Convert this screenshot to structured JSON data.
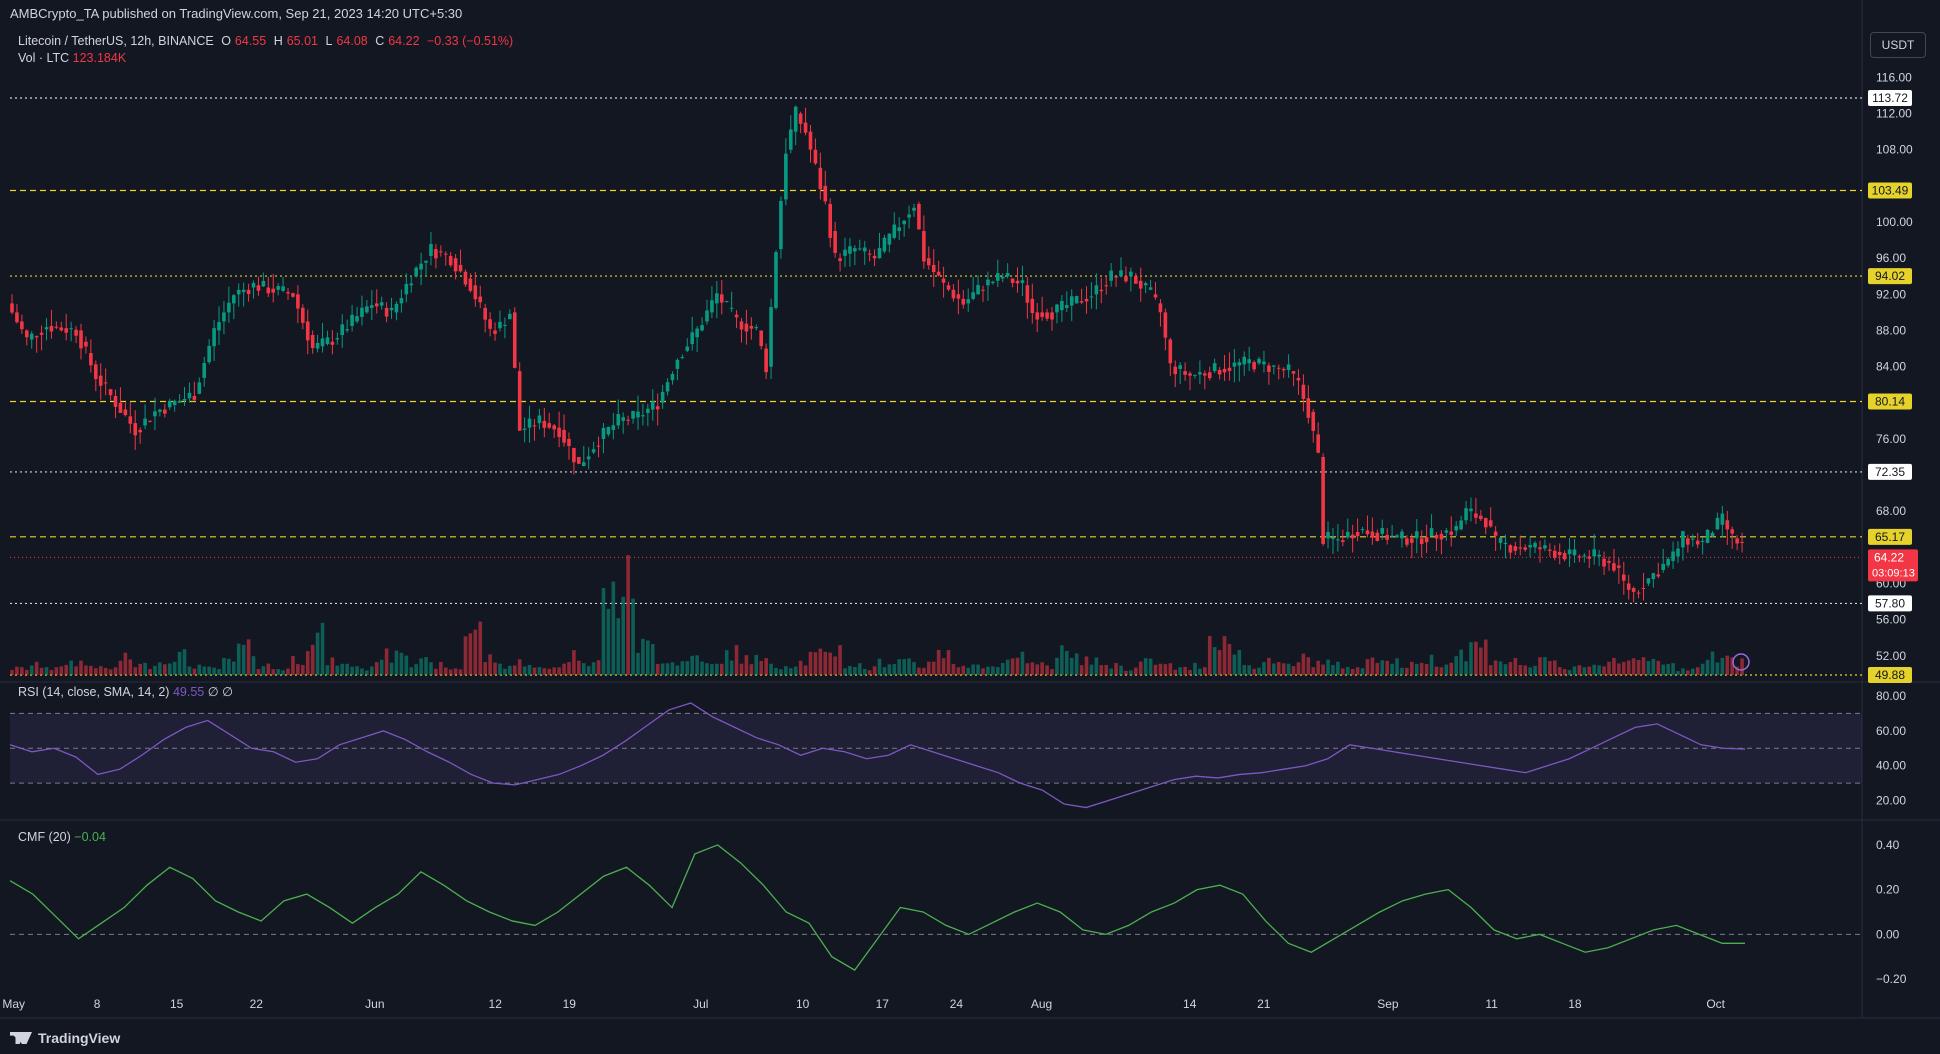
{
  "header": {
    "published": "AMBCrypto_TA published on TradingView.com, Sep 21, 2023 14:20 UTC+5:30",
    "symbol": "Litecoin / TetherUS, 12h, BINANCE",
    "o_label": "O",
    "o": "64.55",
    "h_label": "H",
    "h": "65.01",
    "l_label": "L",
    "l": "64.08",
    "c_label": "C",
    "c": "64.22",
    "change": "−0.33 (−0.51%)",
    "vol_label": "Vol · LTC",
    "vol": "123.184K",
    "currency": "USDT"
  },
  "rsi": {
    "label": "RSI (14, close, SMA, 14, 2)",
    "value": "49.55",
    "extra": "∅ ∅"
  },
  "cmf": {
    "label": "CMF (20)",
    "value": "−0.04"
  },
  "footer": {
    "brand": "TradingView"
  },
  "colors": {
    "up": "#089981",
    "down": "#f23645",
    "level": "#e5d22a",
    "rsi": "#7e57c2",
    "cmf": "#4caf50",
    "bg": "#131722"
  },
  "chart_data": [
    {
      "type": "candlestick",
      "title": "Litecoin / TetherUS, 12h, BINANCE",
      "y_ticks": [
        "116.00",
        "112.00",
        "108.00",
        "100.00",
        "96.00",
        "92.00",
        "88.00",
        "84.00",
        "76.00",
        "68.00",
        "60.00",
        "56.00",
        "52.00"
      ],
      "ylim": [
        49.88,
        116.6
      ],
      "x_ticks": [
        "May",
        "8",
        "15",
        "22",
        "Jun",
        "12",
        "19",
        "Jul",
        "10",
        "17",
        "24",
        "Aug",
        "14",
        "21",
        "Sep",
        "11",
        "18",
        "Oct"
      ],
      "levels": [
        {
          "value": 113.72,
          "label": "113.72",
          "style": "white-dotted"
        },
        {
          "value": 103.49,
          "label": "103.49",
          "style": "yellow-dashed"
        },
        {
          "value": 94.02,
          "label": "94.02",
          "style": "yellow-dotted"
        },
        {
          "value": 80.14,
          "label": "80.14",
          "style": "yellow-dashed"
        },
        {
          "value": 72.35,
          "label": "72.35",
          "style": "white-dotted"
        },
        {
          "value": 65.17,
          "label": "65.17",
          "style": "yellow-dashed"
        },
        {
          "value": 57.8,
          "label": "57.80",
          "style": "white-dotted"
        },
        {
          "value": 49.88,
          "label": "49.88",
          "style": "yellow-dotted"
        }
      ],
      "last_price": {
        "value": 64.22,
        "label": "64.22",
        "countdown": "03:09:13"
      },
      "path_points": [
        [
          0,
          91
        ],
        [
          4,
          87
        ],
        [
          8,
          88.5
        ],
        [
          14,
          88
        ],
        [
          18,
          83
        ],
        [
          22,
          80
        ],
        [
          26,
          77
        ],
        [
          30,
          79
        ],
        [
          34,
          80
        ],
        [
          38,
          81
        ],
        [
          42,
          88
        ],
        [
          46,
          92
        ],
        [
          50,
          93
        ],
        [
          54,
          92.5
        ],
        [
          58,
          92
        ],
        [
          62,
          86
        ],
        [
          66,
          87
        ],
        [
          70,
          89
        ],
        [
          74,
          91
        ],
        [
          78,
          90
        ],
        [
          82,
          94
        ],
        [
          86,
          97
        ],
        [
          90,
          96
        ],
        [
          94,
          93
        ],
        [
          98,
          88
        ],
        [
          100,
          88.5
        ],
        [
          102,
          90
        ],
        [
          104,
          77
        ],
        [
          108,
          78
        ],
        [
          112,
          77
        ],
        [
          116,
          73
        ],
        [
          120,
          76
        ],
        [
          124,
          78
        ],
        [
          128,
          78.5
        ],
        [
          132,
          80
        ],
        [
          136,
          85
        ],
        [
          140,
          88
        ],
        [
          144,
          92
        ],
        [
          148,
          89
        ],
        [
          152,
          88
        ],
        [
          154,
          84
        ],
        [
          156,
          97
        ],
        [
          158,
          108
        ],
        [
          160,
          112
        ],
        [
          162,
          110
        ],
        [
          164,
          106
        ],
        [
          166,
          102
        ],
        [
          168,
          96
        ],
        [
          172,
          97
        ],
        [
          176,
          96
        ],
        [
          180,
          99
        ],
        [
          184,
          102
        ],
        [
          186,
          96
        ],
        [
          190,
          93
        ],
        [
          194,
          91
        ],
        [
          198,
          93
        ],
        [
          202,
          94
        ],
        [
          206,
          93
        ],
        [
          208,
          90
        ],
        [
          212,
          90
        ],
        [
          216,
          91
        ],
        [
          220,
          92
        ],
        [
          224,
          94
        ],
        [
          228,
          94
        ],
        [
          232,
          92
        ],
        [
          234,
          90
        ],
        [
          236,
          84
        ],
        [
          240,
          83
        ],
        [
          244,
          83.5
        ],
        [
          248,
          84
        ],
        [
          252,
          84.5
        ],
        [
          256,
          84
        ],
        [
          260,
          83.5
        ],
        [
          262,
          82
        ],
        [
          264,
          79
        ],
        [
          266,
          74
        ],
        [
          267,
          65
        ],
        [
          270,
          64.8
        ],
        [
          274,
          66
        ],
        [
          278,
          65.5
        ],
        [
          282,
          65
        ],
        [
          286,
          65
        ],
        [
          290,
          65.5
        ],
        [
          294,
          66
        ],
        [
          296,
          68
        ],
        [
          300,
          67
        ],
        [
          302,
          64.5
        ],
        [
          306,
          64
        ],
        [
          310,
          64
        ],
        [
          314,
          63.5
        ],
        [
          318,
          63
        ],
        [
          322,
          63
        ],
        [
          326,
          62
        ],
        [
          328,
          60
        ],
        [
          330,
          59
        ],
        [
          334,
          61
        ],
        [
          338,
          63
        ],
        [
          340,
          65
        ],
        [
          344,
          64.5
        ],
        [
          346,
          66
        ],
        [
          348,
          67
        ],
        [
          350,
          65
        ],
        [
          352,
          64.2
        ]
      ],
      "volume_path": [
        2,
        3,
        2,
        4,
        3,
        2,
        5,
        3,
        4,
        6,
        3,
        2,
        4,
        8,
        3,
        2,
        5,
        12,
        4,
        3,
        2,
        6,
        9,
        4,
        3,
        2,
        14,
        5,
        3,
        4,
        2,
        3,
        6,
        4,
        24,
        28,
        9,
        5,
        4,
        6,
        3,
        7,
        5,
        4,
        3,
        4,
        6,
        8,
        3,
        2,
        4,
        5,
        3,
        6,
        4,
        3,
        2,
        4,
        6,
        3,
        7,
        5,
        4,
        3,
        2,
        4,
        3,
        2,
        3,
        12,
        8,
        3,
        4,
        3,
        5,
        4,
        3,
        2,
        6,
        4,
        3,
        5,
        4,
        7,
        9,
        5,
        4,
        3,
        4,
        2,
        3,
        3,
        5,
        6,
        4,
        3,
        2,
        4,
        6,
        4
      ],
      "rsi_values": [
        52,
        48,
        50,
        45,
        35,
        38,
        46,
        55,
        62,
        66,
        58,
        50,
        48,
        42,
        44,
        52,
        56,
        60,
        55,
        48,
        42,
        35,
        30,
        29,
        32,
        35,
        40,
        46,
        54,
        63,
        72,
        76,
        68,
        62,
        56,
        52,
        46,
        50,
        48,
        44,
        46,
        52,
        48,
        44,
        40,
        36,
        30,
        26,
        18,
        16,
        20,
        24,
        28,
        32,
        34,
        33,
        35,
        36,
        38,
        40,
        44,
        52,
        50,
        48,
        46,
        44,
        42,
        40,
        38,
        36,
        40,
        44,
        50,
        56,
        62,
        64,
        58,
        52,
        50,
        49.55
      ],
      "rsi_ylim": [
        10,
        80
      ],
      "rsi_ticks": [
        "80.00",
        "60.00",
        "40.00",
        "20.00"
      ],
      "cmf_values": [
        0.24,
        0.18,
        0.08,
        -0.02,
        0.05,
        0.12,
        0.22,
        0.3,
        0.25,
        0.15,
        0.1,
        0.06,
        0.15,
        0.18,
        0.12,
        0.05,
        0.12,
        0.18,
        0.28,
        0.22,
        0.15,
        0.1,
        0.06,
        0.04,
        0.1,
        0.18,
        0.26,
        0.3,
        0.22,
        0.12,
        0.36,
        0.4,
        0.32,
        0.22,
        0.1,
        0.05,
        -0.1,
        -0.16,
        -0.02,
        0.12,
        0.1,
        0.04,
        0.0,
        0.05,
        0.1,
        0.14,
        0.1,
        0.02,
        0.0,
        0.04,
        0.1,
        0.14,
        0.2,
        0.22,
        0.18,
        0.06,
        -0.04,
        -0.08,
        -0.02,
        0.04,
        0.1,
        0.15,
        0.18,
        0.2,
        0.12,
        0.02,
        -0.02,
        0.0,
        -0.04,
        -0.08,
        -0.06,
        -0.02,
        0.02,
        0.04,
        0.0,
        -0.04,
        -0.04
      ],
      "cmf_ylim": [
        -0.24,
        0.44
      ],
      "cmf_ticks": [
        "0.40",
        "0.20",
        "0.00",
        "−0.20"
      ]
    }
  ]
}
